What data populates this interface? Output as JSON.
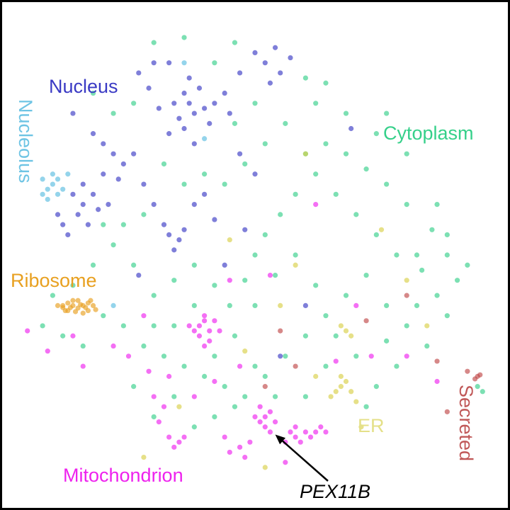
{
  "chart_data": {
    "type": "scatter",
    "title": "",
    "xlabel": "",
    "ylabel": "",
    "axes_visible": false,
    "grid": false,
    "xlim": [
      0,
      100
    ],
    "ylim": [
      0,
      100
    ],
    "series": [
      {
        "name": "Cytoplasm",
        "color": "#35d08a",
        "points": [
          [
            60,
            70
          ],
          [
            64,
            72
          ],
          [
            68,
            70
          ],
          [
            72,
            67
          ],
          [
            76,
            64
          ],
          [
            80,
            60
          ],
          [
            85,
            55
          ],
          [
            88,
            50
          ],
          [
            90,
            45
          ],
          [
            86,
            42
          ],
          [
            83,
            47
          ],
          [
            78,
            50
          ],
          [
            74,
            54
          ],
          [
            70,
            58
          ],
          [
            66,
            62
          ],
          [
            62,
            66
          ],
          [
            58,
            62
          ],
          [
            55,
            58
          ],
          [
            52,
            54
          ],
          [
            50,
            50
          ],
          [
            48,
            45
          ],
          [
            45,
            40
          ],
          [
            42,
            44
          ],
          [
            38,
            48
          ],
          [
            34,
            45
          ],
          [
            30,
            42
          ],
          [
            26,
            48
          ],
          [
            22,
            52
          ],
          [
            18,
            48
          ],
          [
            14,
            44
          ],
          [
            10,
            42
          ],
          [
            8,
            36
          ],
          [
            12,
            34
          ],
          [
            16,
            32
          ],
          [
            20,
            38
          ],
          [
            24,
            36
          ],
          [
            28,
            32
          ],
          [
            32,
            30
          ],
          [
            36,
            28
          ],
          [
            40,
            26
          ],
          [
            44,
            24
          ],
          [
            48,
            22
          ],
          [
            52,
            26
          ],
          [
            56,
            30
          ],
          [
            60,
            34
          ],
          [
            64,
            38
          ],
          [
            68,
            42
          ],
          [
            72,
            46
          ],
          [
            76,
            40
          ],
          [
            80,
            36
          ],
          [
            84,
            32
          ],
          [
            78,
            28
          ],
          [
            74,
            24
          ],
          [
            70,
            30
          ],
          [
            66,
            34
          ],
          [
            62,
            44
          ],
          [
            58,
            50
          ],
          [
            54,
            46
          ],
          [
            50,
            40
          ],
          [
            46,
            34
          ],
          [
            42,
            30
          ],
          [
            38,
            40
          ],
          [
            34,
            36
          ],
          [
            30,
            36
          ],
          [
            26,
            24
          ],
          [
            30,
            18
          ],
          [
            34,
            22
          ],
          [
            38,
            16
          ],
          [
            42,
            18
          ],
          [
            46,
            20
          ],
          [
            50,
            28
          ],
          [
            54,
            22
          ],
          [
            60,
            22
          ],
          [
            64,
            28
          ],
          [
            72,
            20
          ],
          [
            76,
            33
          ],
          [
            82,
            40
          ],
          [
            88,
            38
          ],
          [
            92,
            48
          ],
          [
            86,
            60
          ],
          [
            80,
            70
          ],
          [
            74,
            74
          ],
          [
            68,
            78
          ],
          [
            62,
            80
          ],
          [
            56,
            76
          ],
          [
            52,
            72
          ],
          [
            48,
            68
          ],
          [
            44,
            64
          ],
          [
            40,
            66
          ],
          [
            36,
            64
          ],
          [
            32,
            68
          ],
          [
            28,
            58
          ],
          [
            24,
            56
          ],
          [
            20,
            56
          ],
          [
            46,
            76
          ],
          [
            50,
            80
          ],
          [
            42,
            88
          ],
          [
            46,
            92
          ],
          [
            36,
            93
          ],
          [
            30,
            92
          ],
          [
            26,
            80
          ],
          [
            22,
            78
          ],
          [
            18,
            82
          ],
          [
            60,
            85
          ],
          [
            64,
            84
          ],
          [
            76,
            78
          ],
          [
            82,
            50
          ],
          [
            88,
            54
          ],
          [
            94,
            24
          ],
          [
            95,
            23
          ]
        ]
      },
      {
        "name": "Nucleus",
        "color": "#3a3ac4",
        "points": [
          [
            37,
            80
          ],
          [
            38,
            78
          ],
          [
            36,
            82
          ],
          [
            40,
            79
          ],
          [
            35,
            77
          ],
          [
            39,
            83
          ],
          [
            42,
            80
          ],
          [
            41,
            76
          ],
          [
            34,
            80
          ],
          [
            37,
            85
          ],
          [
            44,
            82
          ],
          [
            45,
            78
          ],
          [
            33,
            74
          ],
          [
            38,
            72
          ],
          [
            36,
            75
          ],
          [
            31,
            79
          ],
          [
            29,
            83
          ],
          [
            27,
            86
          ],
          [
            30,
            88
          ],
          [
            33,
            88
          ],
          [
            47,
            86
          ],
          [
            50,
            90
          ],
          [
            52,
            88
          ],
          [
            54,
            91
          ],
          [
            55,
            86
          ],
          [
            57,
            89
          ],
          [
            53,
            84
          ],
          [
            20,
            66
          ],
          [
            18,
            62
          ],
          [
            16,
            60
          ],
          [
            15,
            58
          ],
          [
            17,
            56
          ],
          [
            19,
            59
          ],
          [
            14,
            62
          ],
          [
            12,
            56
          ],
          [
            13,
            54
          ],
          [
            11,
            58
          ],
          [
            16,
            64
          ],
          [
            21,
            60
          ],
          [
            22,
            70
          ],
          [
            24,
            68
          ],
          [
            20,
            72
          ],
          [
            26,
            70
          ],
          [
            23,
            65
          ],
          [
            33,
            54
          ],
          [
            34,
            51
          ],
          [
            32,
            56
          ],
          [
            36,
            55
          ],
          [
            35,
            53
          ],
          [
            38,
            60
          ],
          [
            40,
            62
          ],
          [
            42,
            57
          ],
          [
            30,
            60
          ],
          [
            28,
            64
          ],
          [
            47,
            70
          ],
          [
            50,
            66
          ],
          [
            14,
            78
          ],
          [
            18,
            74
          ],
          [
            69,
            75
          ],
          [
            48,
            55
          ],
          [
            44,
            48
          ],
          [
            60,
            40
          ],
          [
            55,
            30
          ],
          [
            27,
            46
          ]
        ]
      },
      {
        "name": "Nucleolus",
        "color": "#5bbde0",
        "points": [
          [
            10,
            64
          ],
          [
            9,
            63
          ],
          [
            11,
            65
          ],
          [
            8,
            62
          ],
          [
            10,
            66
          ],
          [
            12,
            63
          ],
          [
            9,
            61
          ],
          [
            11,
            62
          ],
          [
            13,
            66
          ],
          [
            8,
            65
          ],
          [
            22,
            40
          ],
          [
            36,
            88
          ],
          [
            40,
            73
          ]
        ]
      },
      {
        "name": "Ribosome",
        "color": "#e8a020",
        "points": [
          [
            12,
            40
          ],
          [
            13,
            39
          ],
          [
            14,
            40
          ],
          [
            15,
            39.5
          ],
          [
            16,
            40
          ],
          [
            17,
            39
          ],
          [
            18,
            40
          ],
          [
            12.5,
            39
          ],
          [
            14,
            41
          ],
          [
            15,
            41
          ],
          [
            16,
            38.5
          ],
          [
            17,
            40.5
          ],
          [
            13,
            40.5
          ],
          [
            14.5,
            38.8
          ],
          [
            15.5,
            40.2
          ],
          [
            16.5,
            39.6
          ],
          [
            18.5,
            39.2
          ],
          [
            12,
            39.6
          ],
          [
            13.5,
            39.6
          ],
          [
            17.5,
            41
          ],
          [
            11,
            40
          ]
        ]
      },
      {
        "name": "Mitochondrion",
        "color": "#ee22ee",
        "points": [
          [
            40,
            37
          ],
          [
            39,
            36
          ],
          [
            41,
            35
          ],
          [
            40,
            38
          ],
          [
            38,
            35
          ],
          [
            42,
            37
          ],
          [
            39,
            34
          ],
          [
            41,
            33
          ],
          [
            37,
            36
          ],
          [
            43,
            35
          ],
          [
            40,
            32
          ],
          [
            52,
            18
          ],
          [
            51,
            17
          ],
          [
            53,
            19
          ],
          [
            52,
            16
          ],
          [
            50,
            18
          ],
          [
            54,
            17
          ],
          [
            53,
            15
          ],
          [
            51,
            20
          ],
          [
            58,
            14
          ],
          [
            57,
            15
          ],
          [
            59,
            13
          ],
          [
            60,
            15
          ],
          [
            56,
            13
          ],
          [
            58,
            16
          ],
          [
            62,
            15
          ],
          [
            63,
            16
          ],
          [
            61,
            14
          ],
          [
            64,
            15
          ],
          [
            35,
            13
          ],
          [
            34,
            12
          ],
          [
            36,
            14
          ],
          [
            33,
            14
          ],
          [
            32,
            20
          ],
          [
            31,
            17
          ],
          [
            30,
            22
          ],
          [
            45,
            11
          ],
          [
            47,
            12
          ],
          [
            48,
            10
          ],
          [
            44,
            14
          ],
          [
            29,
            27
          ],
          [
            25,
            30
          ],
          [
            16,
            28
          ],
          [
            14,
            34
          ],
          [
            5,
            35
          ],
          [
            9,
            31
          ],
          [
            66,
            29
          ],
          [
            73,
            30
          ],
          [
            86,
            25
          ],
          [
            45,
            45
          ],
          [
            47,
            28
          ],
          [
            56,
            9
          ],
          [
            49,
            13
          ],
          [
            42,
            25
          ],
          [
            38,
            22
          ],
          [
            33,
            26
          ],
          [
            28,
            38
          ],
          [
            22,
            32
          ],
          [
            70,
            40
          ],
          [
            80,
            30
          ],
          [
            62,
            60
          ],
          [
            53,
            46
          ]
        ]
      },
      {
        "name": "ER",
        "color": "#d8d048",
        "points": [
          [
            67,
            24
          ],
          [
            66,
            23
          ],
          [
            68,
            25
          ],
          [
            65,
            22
          ],
          [
            69,
            23
          ],
          [
            67,
            26
          ],
          [
            68,
            35
          ],
          [
            69,
            34
          ],
          [
            67,
            36
          ],
          [
            70,
            21
          ],
          [
            62,
            26
          ],
          [
            71,
            16
          ],
          [
            55,
            40
          ],
          [
            45,
            53
          ],
          [
            60,
            70
          ],
          [
            75,
            55
          ],
          [
            80,
            45
          ],
          [
            35,
            20
          ],
          [
            52,
            8
          ],
          [
            48,
            31
          ],
          [
            28,
            10
          ],
          [
            58,
            48
          ],
          [
            84,
            36
          ]
        ]
      },
      {
        "name": "Secreted",
        "color": "#c04848",
        "points": [
          [
            94,
            26
          ],
          [
            93.5,
            25.5
          ],
          [
            94.5,
            26.3
          ],
          [
            92,
            27
          ],
          [
            86,
            29
          ],
          [
            88,
            19
          ],
          [
            55,
            35
          ],
          [
            52,
            24
          ],
          [
            72,
            37
          ],
          [
            80,
            42
          ],
          [
            58,
            28
          ]
        ]
      }
    ],
    "cluster_labels": {
      "nucleus": "Nucleus",
      "nucleolus": "Nucleolus",
      "cytoplasm": "Cytoplasm",
      "ribosome": "Ribosome",
      "mitochondrion": "Mitochondrion",
      "er": "ER",
      "secreted": "Secreted"
    },
    "annotation": {
      "text": "PEX11B",
      "point": [
        54,
        14.5
      ]
    }
  }
}
